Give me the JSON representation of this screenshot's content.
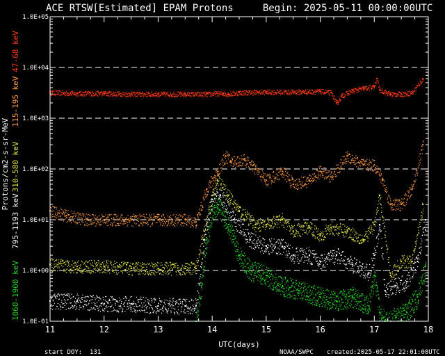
{
  "chart_data": {
    "type": "scatter",
    "title": "ACE RTSW[Estimated] EPAM Protons     Begin: 2025-05-11 00:00:00UTC",
    "xlabel": "UTC(days)",
    "ylabel": "Protons/cm2-s-sr-MeV",
    "y_log_scale": true,
    "ylim": [
      0.1,
      100000
    ],
    "xlim": [
      11,
      18
    ],
    "y_ticks": [
      "1.0E-01",
      "1.0E+00",
      "1.0E+01",
      "1.0E+02",
      "1.0E+03",
      "1.0E+04",
      "1.0E+05"
    ],
    "x_ticks": [
      "11",
      "12",
      "13",
      "14",
      "15",
      "16",
      "17",
      "18"
    ],
    "grid": "dashed horizontal at 1.0E+00 to 1.0E+04",
    "footer": {
      "start_doy": "start DOY:  131",
      "source": "NOAA/SWPC",
      "created": "created:2025-05-17 22:01:08UTC"
    },
    "series": [
      {
        "name": "47-68 keV",
        "color": "#ff3a10",
        "x": [
          11,
          11.5,
          12,
          12.5,
          13,
          13.5,
          13.9,
          14.2,
          14.3,
          14.5,
          15,
          15.5,
          16,
          16.2,
          16.3,
          16.4,
          16.6,
          16.8,
          17,
          17.05,
          17.1,
          17.3,
          17.5,
          17.7,
          17.9
        ],
        "y": [
          3200,
          3100,
          3100,
          3000,
          3000,
          3000,
          3000,
          3100,
          3000,
          3200,
          3300,
          3300,
          3400,
          3200,
          2000,
          2800,
          3500,
          3900,
          4200,
          6000,
          3600,
          3000,
          3000,
          3200,
          6000
        ]
      },
      {
        "name": "115-195 keV",
        "color": "#ff9a40",
        "x": [
          11,
          11.3,
          11.7,
          12,
          12.5,
          13,
          13.5,
          13.7,
          13.9,
          14.1,
          14.25,
          14.35,
          14.6,
          14.8,
          15,
          15.3,
          15.5,
          15.8,
          16,
          16.2,
          16.5,
          16.8,
          17,
          17.15,
          17.3,
          17.5,
          17.7,
          17.9
        ],
        "y": [
          15,
          12,
          10,
          10,
          10,
          10,
          10,
          9,
          40,
          90,
          180,
          140,
          150,
          100,
          60,
          90,
          50,
          60,
          90,
          70,
          180,
          120,
          120,
          60,
          20,
          20,
          40,
          300
        ]
      },
      {
        "name": "310-580 keV",
        "color": "#e8e84a",
        "x": [
          11,
          11.5,
          12,
          12.5,
          13,
          13.5,
          13.7,
          13.85,
          14,
          14.1,
          14.3,
          14.5,
          14.8,
          15,
          15.3,
          15.5,
          15.8,
          16,
          16.2,
          16.5,
          16.8,
          17,
          17.1,
          17.3,
          17.5,
          17.7,
          17.9
        ],
        "y": [
          1.3,
          1.2,
          1.2,
          1.1,
          1.1,
          1.1,
          1.1,
          6,
          30,
          60,
          30,
          15,
          8,
          8,
          10,
          6,
          7,
          5,
          7,
          6,
          4,
          8,
          30,
          0.8,
          1.5,
          1.5,
          20
        ]
      },
      {
        "name": "795-1193 keV",
        "color": "#ffffff",
        "x": [
          11,
          11.5,
          12,
          12.5,
          13,
          13.5,
          13.7,
          13.85,
          14,
          14.15,
          14.4,
          14.7,
          15,
          15.3,
          15.5,
          15.8,
          16,
          16.3,
          16.6,
          16.9,
          17,
          17.1,
          17.2,
          17.4,
          17.6,
          17.8,
          17.95
        ],
        "y": [
          0.25,
          0.25,
          0.22,
          0.22,
          0.2,
          0.2,
          0.2,
          4,
          25,
          30,
          10,
          4,
          3,
          3,
          2,
          2,
          1.5,
          2,
          1.3,
          0.9,
          2,
          8,
          0.4,
          0.5,
          0.6,
          1.5,
          10
        ]
      },
      {
        "name": "1060-1900 keV",
        "color": "#25d020",
        "x": [
          13.7,
          13.8,
          13.9,
          14,
          14.1,
          14.3,
          14.5,
          14.7,
          15,
          15.3,
          15.6,
          16,
          16.3,
          16.6,
          16.9,
          17,
          17.1,
          17.2,
          17.4,
          17.6,
          17.8,
          17.95
        ],
        "y": [
          0.1,
          0.5,
          4,
          15,
          20,
          8,
          2,
          1,
          0.8,
          0.5,
          0.4,
          0.3,
          0.25,
          0.3,
          0.2,
          0.8,
          0.15,
          0.1,
          0.12,
          0.15,
          0.3,
          1.2
        ]
      }
    ]
  }
}
